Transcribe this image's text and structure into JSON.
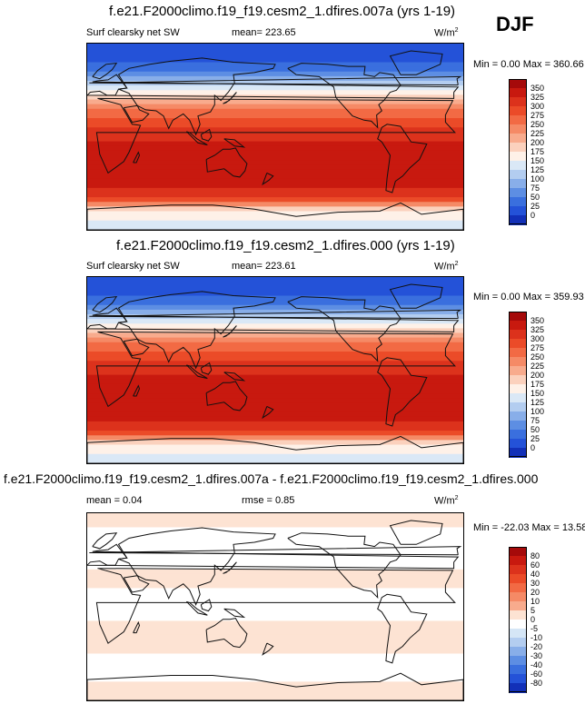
{
  "season": "DJF",
  "panels": [
    {
      "title": "f.e21.F2000climo.f19_f19.cesm2_1.dfires.007a (yrs 1-19)",
      "variable": "Surf clearsky net SW",
      "stat1": "mean= 223.65",
      "stat2": "",
      "units": "W/m",
      "units_sup": "2",
      "minmax": "Min =   0.00 Max = 360.66"
    },
    {
      "title": "f.e21.F2000climo.f19_f19.cesm2_1.dfires.000 (yrs 1-19)",
      "variable": "Surf clearsky net SW",
      "stat1": "mean= 223.61",
      "stat2": "",
      "units": "W/m",
      "units_sup": "2",
      "minmax": "Min =   0.00 Max = 359.93"
    },
    {
      "title": "f.e21.F2000climo.f19_f19.cesm2_1.dfires.007a - f.e21.F2000climo.f19_f19.cesm2_1.dfires.000",
      "variable": "mean =   0.04",
      "stat1": "rmse =   0.85",
      "stat2": "",
      "units": "W/m",
      "units_sup": "2",
      "minmax": "Min = -22.03 Max =  13.58"
    }
  ],
  "chart_data": [
    {
      "type": "heatmap",
      "title": "f.e21.F2000climo.f19_f19.cesm2_1.dfires.007a (yrs 1-19)",
      "colorbar_levels": [
        "350",
        "325",
        "300",
        "275",
        "250",
        "225",
        "200",
        "175",
        "150",
        "125",
        "100",
        "75",
        "50",
        "25",
        "0"
      ],
      "colorbar_colors": [
        "#a50a0a",
        "#c8190f",
        "#dc321c",
        "#eb4b28",
        "#f26a44",
        "#f58a66",
        "#f8ab8d",
        "#fbd1bd",
        "#fef1e8",
        "#dae8f6",
        "#b3cdf0",
        "#88aee9",
        "#5d8ee3",
        "#3a6fde",
        "#2452d8",
        "#1230b8"
      ],
      "latitude_profile": [
        {
          "lat": 90,
          "value": 0
        },
        {
          "lat": 70,
          "value": 25
        },
        {
          "lat": 60,
          "value": 60
        },
        {
          "lat": 50,
          "value": 110
        },
        {
          "lat": 40,
          "value": 175
        },
        {
          "lat": 30,
          "value": 230
        },
        {
          "lat": 20,
          "value": 275
        },
        {
          "lat": 10,
          "value": 300
        },
        {
          "lat": 0,
          "value": 320
        },
        {
          "lat": -10,
          "value": 330
        },
        {
          "lat": -20,
          "value": 340
        },
        {
          "lat": -30,
          "value": 345
        },
        {
          "lat": -40,
          "value": 340
        },
        {
          "lat": -50,
          "value": 320
        },
        {
          "lat": -60,
          "value": 290
        },
        {
          "lat": -70,
          "value": 180
        },
        {
          "lat": -90,
          "value": 120
        }
      ]
    },
    {
      "type": "heatmap",
      "title": "f.e21.F2000climo.f19_f19.cesm2_1.dfires.000 (yrs 1-19)",
      "colorbar_levels": [
        "350",
        "325",
        "300",
        "275",
        "250",
        "225",
        "200",
        "175",
        "150",
        "125",
        "100",
        "75",
        "50",
        "25",
        "0"
      ],
      "colorbar_colors": [
        "#a50a0a",
        "#c8190f",
        "#dc321c",
        "#eb4b28",
        "#f26a44",
        "#f58a66",
        "#f8ab8d",
        "#fbd1bd",
        "#fef1e8",
        "#dae8f6",
        "#b3cdf0",
        "#88aee9",
        "#5d8ee3",
        "#3a6fde",
        "#2452d8",
        "#1230b8"
      ],
      "latitude_profile": [
        {
          "lat": 90,
          "value": 0
        },
        {
          "lat": 70,
          "value": 25
        },
        {
          "lat": 60,
          "value": 60
        },
        {
          "lat": 50,
          "value": 110
        },
        {
          "lat": 40,
          "value": 175
        },
        {
          "lat": 30,
          "value": 230
        },
        {
          "lat": 20,
          "value": 275
        },
        {
          "lat": 10,
          "value": 300
        },
        {
          "lat": 0,
          "value": 320
        },
        {
          "lat": -10,
          "value": 330
        },
        {
          "lat": -20,
          "value": 340
        },
        {
          "lat": -30,
          "value": 345
        },
        {
          "lat": -40,
          "value": 340
        },
        {
          "lat": -50,
          "value": 320
        },
        {
          "lat": -60,
          "value": 290
        },
        {
          "lat": -70,
          "value": 180
        },
        {
          "lat": -90,
          "value": 120
        }
      ]
    },
    {
      "type": "heatmap",
      "title": "f.e21.F2000climo.f19_f19.cesm2_1.dfires.007a - f.e21.F2000climo.f19_f19.cesm2_1.dfires.000",
      "colorbar_levels": [
        "80",
        "60",
        "40",
        "30",
        "20",
        "10",
        "5",
        "0",
        "-5",
        "-10",
        "-20",
        "-30",
        "-40",
        "-60",
        "-80"
      ],
      "colorbar_colors": [
        "#a50a0a",
        "#c8190f",
        "#dc321c",
        "#eb4b28",
        "#f26a44",
        "#f58a66",
        "#f8ab8d",
        "#fde3d3",
        "#ffffff",
        "#d5e6f6",
        "#b3cdf0",
        "#88aee9",
        "#5d8ee3",
        "#3a6fde",
        "#2452d8",
        "#1230b8"
      ],
      "latitude_profile": [
        {
          "lat": 90,
          "value": 2
        },
        {
          "lat": 60,
          "value": -3
        },
        {
          "lat": 30,
          "value": 1
        },
        {
          "lat": 0,
          "value": -2
        },
        {
          "lat": -30,
          "value": 2
        },
        {
          "lat": -60,
          "value": -2
        },
        {
          "lat": -90,
          "value": 3
        }
      ]
    }
  ]
}
